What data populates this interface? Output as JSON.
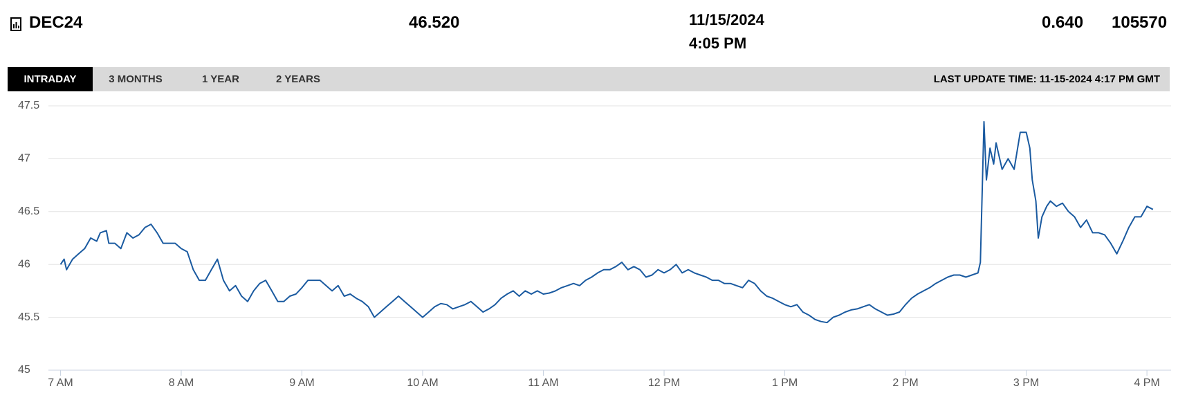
{
  "header": {
    "symbol": "DEC24",
    "last": "46.520",
    "date": "11/15/2024",
    "time": "4:05 PM",
    "change": "0.640",
    "volume": "105570"
  },
  "tabs": [
    "INTRADAY",
    "3 MONTHS",
    "1 YEAR",
    "2 YEARS"
  ],
  "last_update": "LAST UPDATE TIME: 11-15-2024 4:17 PM GMT",
  "chart_data": {
    "type": "line",
    "xlim": [
      6.9,
      16.2
    ],
    "ylim": [
      45,
      47.5
    ],
    "xticks": [
      {
        "value": 7,
        "label": "7 AM"
      },
      {
        "value": 8,
        "label": "8 AM"
      },
      {
        "value": 9,
        "label": "9 AM"
      },
      {
        "value": 10,
        "label": "10 AM"
      },
      {
        "value": 11,
        "label": "11 AM"
      },
      {
        "value": 12,
        "label": "12 PM"
      },
      {
        "value": 13,
        "label": "1 PM"
      },
      {
        "value": 14,
        "label": "2 PM"
      },
      {
        "value": 15,
        "label": "3 PM"
      },
      {
        "value": 16,
        "label": "4 PM"
      }
    ],
    "yticks": [
      45,
      45.5,
      46,
      46.5,
      47,
      47.5
    ],
    "grid": true,
    "series": [
      {
        "color": "#1a5aa0",
        "x": [
          7.0,
          7.03,
          7.05,
          7.1,
          7.15,
          7.2,
          7.25,
          7.3,
          7.33,
          7.38,
          7.4,
          7.45,
          7.5,
          7.55,
          7.6,
          7.65,
          7.7,
          7.75,
          7.8,
          7.85,
          7.9,
          7.95,
          8.0,
          8.05,
          8.1,
          8.15,
          8.2,
          8.25,
          8.3,
          8.35,
          8.4,
          8.45,
          8.5,
          8.55,
          8.6,
          8.65,
          8.7,
          8.75,
          8.8,
          8.85,
          8.9,
          8.95,
          9.0,
          9.05,
          9.1,
          9.15,
          9.2,
          9.25,
          9.3,
          9.35,
          9.4,
          9.45,
          9.5,
          9.55,
          9.6,
          9.65,
          9.7,
          9.75,
          9.8,
          9.85,
          9.9,
          9.95,
          10.0,
          10.05,
          10.1,
          10.15,
          10.2,
          10.25,
          10.3,
          10.35,
          10.4,
          10.45,
          10.5,
          10.55,
          10.6,
          10.65,
          10.7,
          10.75,
          10.8,
          10.85,
          10.9,
          10.95,
          11.0,
          11.05,
          11.1,
          11.15,
          11.2,
          11.25,
          11.3,
          11.35,
          11.4,
          11.45,
          11.5,
          11.55,
          11.6,
          11.65,
          11.7,
          11.75,
          11.8,
          11.85,
          11.9,
          11.95,
          12.0,
          12.05,
          12.1,
          12.15,
          12.2,
          12.25,
          12.3,
          12.35,
          12.4,
          12.45,
          12.5,
          12.55,
          12.6,
          12.65,
          12.7,
          12.75,
          12.8,
          12.85,
          12.9,
          12.95,
          13.0,
          13.05,
          13.1,
          13.15,
          13.2,
          13.25,
          13.3,
          13.35,
          13.4,
          13.45,
          13.5,
          13.55,
          13.6,
          13.65,
          13.7,
          13.75,
          13.8,
          13.85,
          13.9,
          13.95,
          14.0,
          14.05,
          14.1,
          14.15,
          14.2,
          14.25,
          14.3,
          14.35,
          14.4,
          14.45,
          14.5,
          14.55,
          14.6,
          14.62,
          14.65,
          14.67,
          14.7,
          14.73,
          14.75,
          14.8,
          14.85,
          14.9,
          14.95,
          15.0,
          15.03,
          15.05,
          15.08,
          15.1,
          15.13,
          15.17,
          15.2,
          15.25,
          15.3,
          15.35,
          15.4,
          15.45,
          15.5,
          15.55,
          15.6,
          15.65,
          15.7,
          15.75,
          15.8,
          15.85,
          15.9,
          15.95,
          16.0,
          16.05
        ],
        "values": [
          46.0,
          46.05,
          45.95,
          46.05,
          46.1,
          46.15,
          46.25,
          46.22,
          46.3,
          46.32,
          46.2,
          46.2,
          46.15,
          46.3,
          46.25,
          46.28,
          46.35,
          46.38,
          46.3,
          46.2,
          46.2,
          46.2,
          46.15,
          46.12,
          45.95,
          45.85,
          45.85,
          45.95,
          46.05,
          45.85,
          45.75,
          45.8,
          45.7,
          45.65,
          45.75,
          45.82,
          45.85,
          45.75,
          45.65,
          45.65,
          45.7,
          45.72,
          45.78,
          45.85,
          45.85,
          45.85,
          45.8,
          45.75,
          45.8,
          45.7,
          45.72,
          45.68,
          45.65,
          45.6,
          45.5,
          45.55,
          45.6,
          45.65,
          45.7,
          45.65,
          45.6,
          45.55,
          45.5,
          45.55,
          45.6,
          45.63,
          45.62,
          45.58,
          45.6,
          45.62,
          45.65,
          45.6,
          45.55,
          45.58,
          45.62,
          45.68,
          45.72,
          45.75,
          45.7,
          45.75,
          45.72,
          45.75,
          45.72,
          45.73,
          45.75,
          45.78,
          45.8,
          45.82,
          45.8,
          45.85,
          45.88,
          45.92,
          45.95,
          45.95,
          45.98,
          46.02,
          45.95,
          45.98,
          45.95,
          45.88,
          45.9,
          45.95,
          45.92,
          45.95,
          46.0,
          45.92,
          45.95,
          45.92,
          45.9,
          45.88,
          45.85,
          45.85,
          45.82,
          45.82,
          45.8,
          45.78,
          45.85,
          45.82,
          45.75,
          45.7,
          45.68,
          45.65,
          45.62,
          45.6,
          45.62,
          45.55,
          45.52,
          45.48,
          45.46,
          45.45,
          45.5,
          45.52,
          45.55,
          45.57,
          45.58,
          45.6,
          45.62,
          45.58,
          45.55,
          45.52,
          45.53,
          45.55,
          45.62,
          45.68,
          45.72,
          45.75,
          45.78,
          45.82,
          45.85,
          45.88,
          45.9,
          45.9,
          45.88,
          45.9,
          45.92,
          46.02,
          47.35,
          46.8,
          47.1,
          46.95,
          47.15,
          46.9,
          47.0,
          46.9,
          47.25,
          47.25,
          47.1,
          46.8,
          46.6,
          46.25,
          46.45,
          46.55,
          46.6,
          46.55,
          46.58,
          46.5,
          46.45,
          46.35,
          46.42,
          46.3,
          46.3,
          46.28,
          46.2,
          46.1,
          46.22,
          46.35,
          46.45,
          46.45,
          46.55,
          46.52
        ]
      }
    ]
  }
}
